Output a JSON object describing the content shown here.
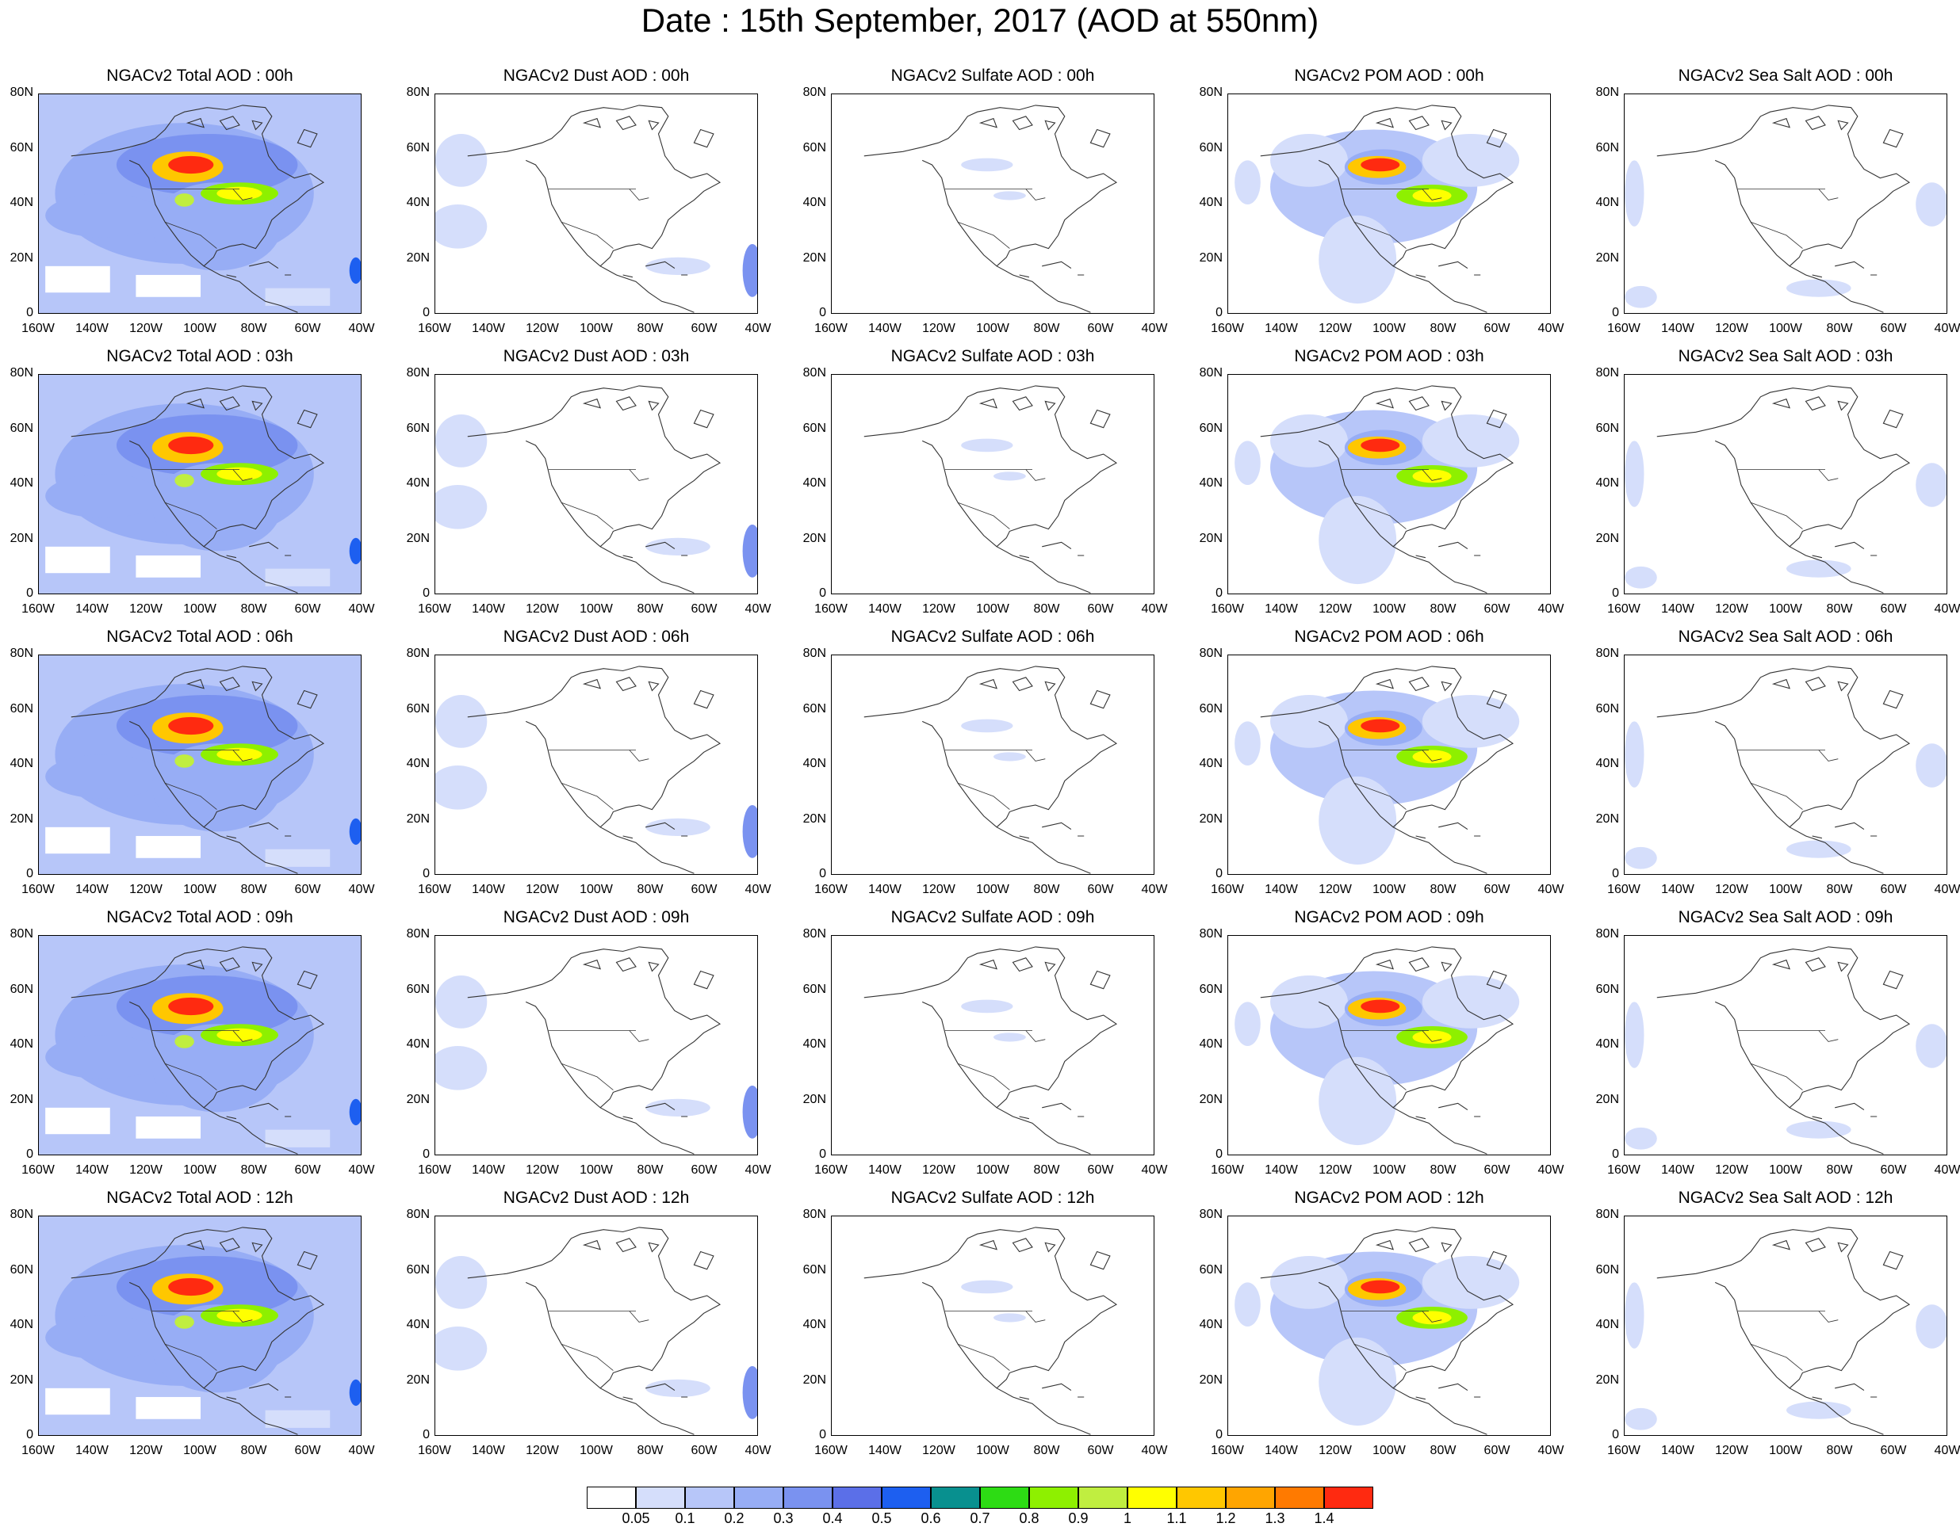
{
  "title": "Date : 15th September, 2017 (AOD at 550nm)",
  "rows": [
    [
      "NGACv2 Total AOD : 00h",
      "NGACv2 Dust AOD : 00h",
      "NGACv2 Sulfate AOD : 00h",
      "NGACv2 POM AOD : 00h",
      "NGACv2 Sea Salt AOD : 00h"
    ],
    [
      "NGACv2 Total AOD : 03h",
      "NGACv2 Dust AOD : 03h",
      "NGACv2 Sulfate AOD : 03h",
      "NGACv2 POM AOD : 03h",
      "NGACv2 Sea Salt AOD : 03h"
    ],
    [
      "NGACv2 Total AOD : 06h",
      "NGACv2 Dust AOD : 06h",
      "NGACv2 Sulfate AOD : 06h",
      "NGACv2 POM AOD : 06h",
      "NGACv2 Sea Salt AOD : 06h"
    ],
    [
      "NGACv2 Total AOD : 09h",
      "NGACv2 Dust AOD : 09h",
      "NGACv2 Sulfate AOD : 09h",
      "NGACv2 POM AOD : 09h",
      "NGACv2 Sea Salt  AOD : 09h"
    ],
    [
      "NGACv2 Total AOD  : 12h",
      "NGACv2 Dust AOD : 12h",
      "NGACv2 Sulfate AOD : 12h",
      "NGACv2 POM  AOD : 12h",
      "NGACv2 Sea Salt  AOD : 12h"
    ]
  ],
  "lat_labels": [
    "80N",
    "60N",
    "40N",
    "20N",
    "0"
  ],
  "lon_labels": [
    "160W",
    "140W",
    "120W",
    "100W",
    "80W",
    "60W",
    "40W"
  ],
  "colorbar": {
    "colors": [
      "#ffffff",
      "#d5defb",
      "#b7c6f9",
      "#97adf5",
      "#7a92f0",
      "#5b6fe8",
      "#1d5ff0",
      "#08908f",
      "#2ddc14",
      "#8ef000",
      "#c0ee40",
      "#ffff00",
      "#ffc700",
      "#ffa500",
      "#ff7a00",
      "#ff2a10"
    ],
    "labels": [
      "0.05",
      "0.1",
      "0.2",
      "0.3",
      "0.4",
      "0.5",
      "0.6",
      "0.7",
      "0.8",
      "0.9",
      "1",
      "1.1",
      "1.2",
      "1.3",
      "1.4"
    ]
  }
}
